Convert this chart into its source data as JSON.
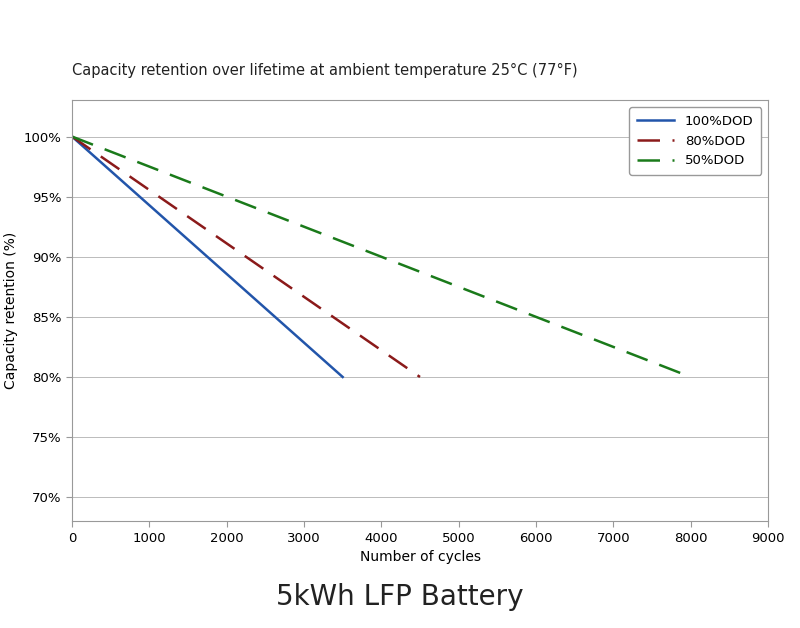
{
  "title": "Capacity retention over lifetime at ambient temperature 25°C (77°F)",
  "subtitle": "5kWh LFP Battery",
  "xlabel": "Number of cycles",
  "ylabel": "Capacity retention (%)",
  "xlim": [
    0,
    9000
  ],
  "ylim": [
    68,
    103
  ],
  "xticks": [
    0,
    1000,
    2000,
    3000,
    4000,
    5000,
    6000,
    7000,
    8000,
    9000
  ],
  "yticks": [
    70,
    75,
    80,
    85,
    90,
    95,
    100
  ],
  "ytick_labels": [
    "70%",
    "75%",
    "80%",
    "85%",
    "90%",
    "95%",
    "100%"
  ],
  "series": [
    {
      "label": "100%DOD",
      "x": [
        0,
        3500
      ],
      "y": [
        100,
        80
      ],
      "color": "#2255aa",
      "linestyle": "solid",
      "linewidth": 1.8,
      "dashes": null
    },
    {
      "label": "80%DOD",
      "x": [
        0,
        4500
      ],
      "y": [
        100,
        80
      ],
      "color": "#8b1a1a",
      "linestyle": "dashed",
      "linewidth": 1.8,
      "dashes": [
        9,
        5
      ]
    },
    {
      "label": "50%DOD",
      "x": [
        0,
        8000
      ],
      "y": [
        100,
        80
      ],
      "color": "#1a7a1a",
      "linestyle": "dashed",
      "linewidth": 1.8,
      "dashes": [
        9,
        5
      ]
    }
  ],
  "bg_color": "#ffffff",
  "plot_bg_color": "#ffffff",
  "grid_color": "#bbbbbb",
  "title_fontsize": 10.5,
  "subtitle_fontsize": 20,
  "axis_label_fontsize": 10,
  "tick_fontsize": 9.5,
  "legend_fontsize": 9.5,
  "legend_loc": "upper right",
  "border_color": "#999999"
}
